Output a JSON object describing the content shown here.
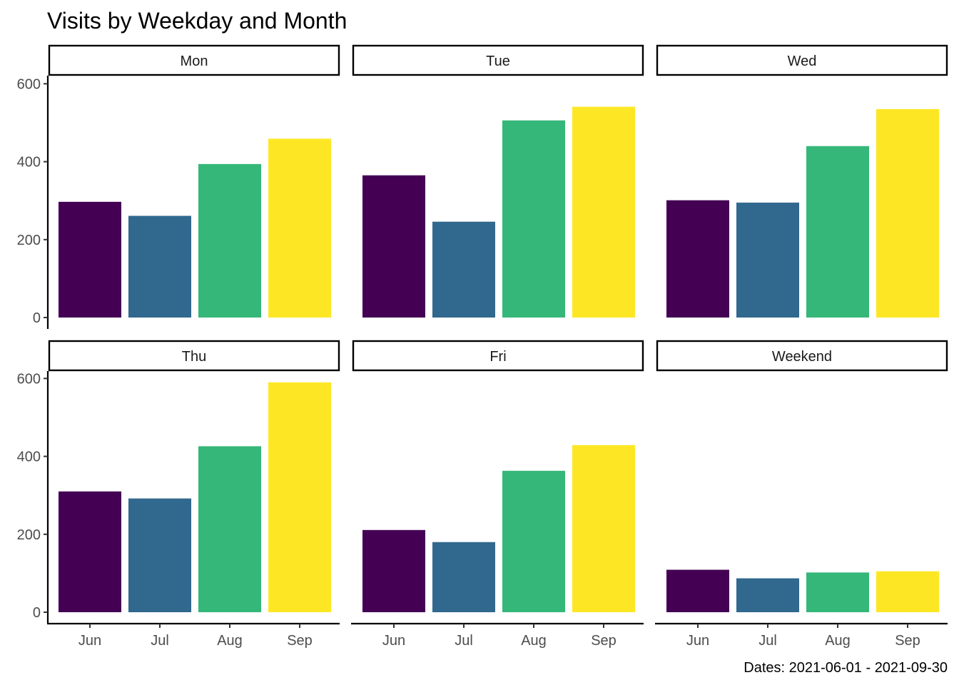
{
  "chart_data": {
    "type": "bar",
    "title": "Visits by Weekday and Month",
    "caption": "Dates: 2021-06-01 - 2021-09-30",
    "categories": [
      "Jun",
      "Jul",
      "Aug",
      "Sep"
    ],
    "colors": [
      "#440154",
      "#31688E",
      "#35B779",
      "#FDE725"
    ],
    "ylim": [
      0,
      600
    ],
    "yticks": [
      0,
      200,
      400,
      600
    ],
    "grid": false,
    "legend": "none",
    "panels": [
      {
        "name": "Mon",
        "values": [
          297,
          261,
          394,
          459
        ]
      },
      {
        "name": "Tue",
        "values": [
          365,
          246,
          506,
          541
        ]
      },
      {
        "name": "Wed",
        "values": [
          301,
          295,
          440,
          535
        ]
      },
      {
        "name": "Thu",
        "values": [
          310,
          292,
          426,
          590
        ]
      },
      {
        "name": "Fri",
        "values": [
          211,
          180,
          363,
          429
        ]
      },
      {
        "name": "Weekend",
        "values": [
          109,
          87,
          102,
          105
        ]
      }
    ]
  }
}
